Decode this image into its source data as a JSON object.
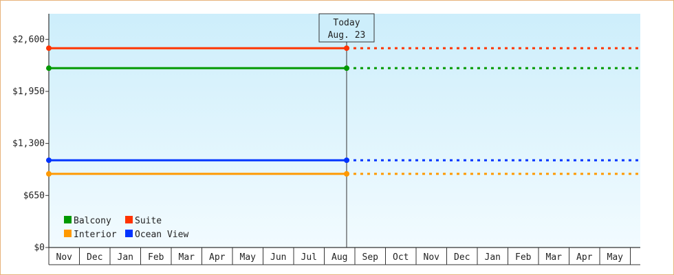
{
  "chart_data": {
    "type": "line",
    "y_ticks": [
      0,
      650,
      1300,
      1950,
      2600
    ],
    "y_tick_labels": [
      "$0",
      "$650",
      "$1,300",
      "$1,950",
      "$2,600"
    ],
    "ylim": [
      0,
      2920
    ],
    "x_tick_labels": [
      "Nov",
      "Dec",
      "Jan",
      "Feb",
      "Mar",
      "Apr",
      "May",
      "Jun",
      "Jul",
      "Aug",
      "Sep",
      "Oct",
      "Nov",
      "Dec",
      "Jan",
      "Feb",
      "Mar",
      "Apr",
      "May"
    ],
    "today_marker": {
      "line1": "Today",
      "line2": "Aug. 23",
      "x_index": 9.73
    },
    "series": [
      {
        "name": "Suite",
        "color": "#ff3300",
        "value": 2490,
        "start_index": 0,
        "end_index": 9.73,
        "projection_end_index": 19.33
      },
      {
        "name": "Balcony",
        "color": "#009900",
        "value": 2240,
        "start_index": 0,
        "end_index": 9.73,
        "projection_end_index": 19.33
      },
      {
        "name": "Ocean View",
        "color": "#0033ff",
        "value": 1090,
        "start_index": 0,
        "end_index": 9.73,
        "projection_end_index": 19.33
      },
      {
        "name": "Interior",
        "color": "#ff9900",
        "value": 920,
        "start_index": 0,
        "end_index": 9.73,
        "projection_end_index": 19.33
      }
    ],
    "legend": {
      "placement": "bottom-left",
      "order": [
        "Balcony",
        "Suite",
        "Interior",
        "Ocean View"
      ]
    },
    "grid": false,
    "background_gradient": [
      "#cdeefb",
      "#f2fbff"
    ]
  }
}
